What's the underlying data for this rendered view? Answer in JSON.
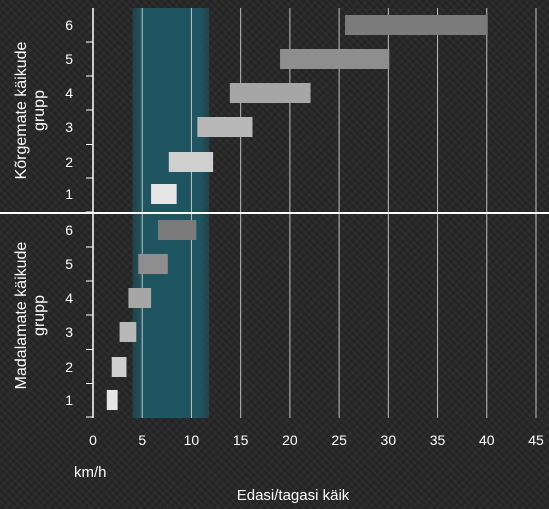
{
  "chart_data": {
    "type": "bar",
    "subtype": "floating-horizontal-range",
    "xlabel": "Edasi/tagasi käik",
    "unit_label": "km/h",
    "xlim": [
      0,
      45
    ],
    "x_ticks": [
      0,
      5,
      10,
      15,
      20,
      25,
      30,
      35,
      40,
      45
    ],
    "grid": true,
    "highlight_band": {
      "from": 4,
      "to": 11.8,
      "color": "#1e5560"
    },
    "groups": [
      {
        "name": "Kõrgemate käikude grupp",
        "gears": [
          {
            "label": "1",
            "from": 5.9,
            "to": 8.5,
            "color": "#e6e6e6"
          },
          {
            "label": "2",
            "from": 7.7,
            "to": 12.2,
            "color": "#cfcfcf"
          },
          {
            "label": "3",
            "from": 10.6,
            "to": 16.2,
            "color": "#b8b8b8"
          },
          {
            "label": "4",
            "from": 13.9,
            "to": 22.1,
            "color": "#a6a6a6"
          },
          {
            "label": "5",
            "from": 19.0,
            "to": 30.1,
            "color": "#8e8e8e"
          },
          {
            "label": "6",
            "from": 25.6,
            "to": 40.1,
            "color": "#7b7b7b"
          }
        ]
      },
      {
        "name": "Madalamate käikude grupp",
        "gears": [
          {
            "label": "1",
            "from": 1.4,
            "to": 2.5,
            "color": "#e6e6e6"
          },
          {
            "label": "2",
            "from": 1.9,
            "to": 3.4,
            "color": "#cfcfcf"
          },
          {
            "label": "3",
            "from": 2.7,
            "to": 4.4,
            "color": "#b8b8b8"
          },
          {
            "label": "4",
            "from": 3.6,
            "to": 5.9,
            "color": "#a6a6a6"
          },
          {
            "label": "5",
            "from": 4.6,
            "to": 7.6,
            "color": "#8e8e8e"
          },
          {
            "label": "6",
            "from": 6.6,
            "to": 10.5,
            "color": "#7b7b7b"
          }
        ]
      }
    ]
  }
}
